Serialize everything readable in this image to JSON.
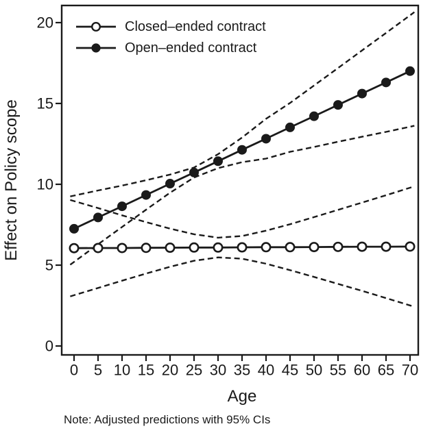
{
  "figure": {
    "note": "Note: Adjusted predictions with 95% CIs"
  },
  "chart_data": {
    "type": "line",
    "title": "",
    "xlabel": "Age",
    "ylabel": "Effect on Policy scope",
    "x": [
      0,
      5,
      10,
      15,
      20,
      25,
      30,
      35,
      40,
      45,
      50,
      55,
      60,
      65,
      70
    ],
    "y_ticks": [
      0,
      5,
      10,
      15,
      20
    ],
    "xlim": [
      -2.6,
      71.7
    ],
    "ylim": [
      -0.55,
      21.06
    ],
    "grid": false,
    "legend_position": "top-left-inside",
    "ci_level": "95%",
    "ci_style": "dashed",
    "colors": {
      "foreground": "#1a1a1a",
      "background": "#ffffff"
    },
    "series": [
      {
        "name": "Closed–ended contract",
        "marker": "open-circle",
        "values": [
          6.05,
          6.06,
          6.06,
          6.07,
          6.08,
          6.09,
          6.09,
          6.1,
          6.11,
          6.11,
          6.12,
          6.13,
          6.14,
          6.14,
          6.15
        ],
        "ci_upper": [
          8.96,
          8.53,
          8.08,
          7.66,
          7.26,
          6.91,
          6.7,
          6.8,
          7.13,
          7.53,
          7.97,
          8.42,
          8.87,
          9.32,
          9.79
        ],
        "ci_lower": [
          3.14,
          3.59,
          4.04,
          4.48,
          4.9,
          5.27,
          5.48,
          5.4,
          5.09,
          4.69,
          4.27,
          3.84,
          3.41,
          2.96,
          2.51
        ]
      },
      {
        "name": "Open–ended contract",
        "marker": "filled-circle",
        "values": [
          7.25,
          7.95,
          8.64,
          9.34,
          10.04,
          10.73,
          11.43,
          12.13,
          12.82,
          13.52,
          14.21,
          14.91,
          15.61,
          16.3,
          17.0
        ],
        "ci_upper": [
          9.3,
          9.62,
          9.92,
          10.25,
          10.6,
          11.04,
          11.86,
          12.89,
          14.05,
          15.03,
          16.11,
          17.19,
          18.28,
          19.36,
          20.45
        ],
        "ci_lower": [
          5.2,
          6.29,
          7.36,
          8.43,
          9.48,
          10.42,
          11.0,
          11.37,
          11.59,
          12.01,
          12.31,
          12.63,
          12.94,
          13.24,
          13.56
        ]
      }
    ]
  }
}
